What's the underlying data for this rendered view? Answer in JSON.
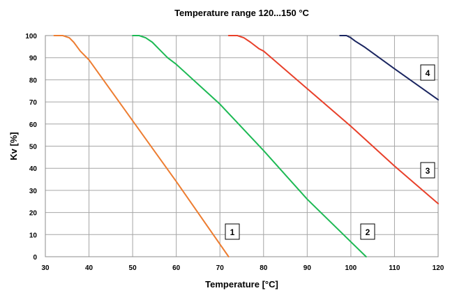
{
  "chart_data": {
    "type": "line",
    "title": "Temperature range 120...150 °C",
    "xlabel": "Temperature [°C]",
    "ylabel": "Kv [%]",
    "xlim": [
      30,
      120
    ],
    "ylim": [
      0,
      100
    ],
    "xticks": [
      30,
      40,
      50,
      60,
      70,
      80,
      90,
      100,
      110,
      120
    ],
    "yticks": [
      0,
      10,
      20,
      30,
      40,
      50,
      60,
      70,
      80,
      90,
      100
    ],
    "grid": true,
    "series": [
      {
        "name": "1",
        "color": "#ed7d31",
        "points": [
          [
            32,
            100
          ],
          [
            34,
            100
          ],
          [
            35.5,
            99
          ],
          [
            36.5,
            97
          ],
          [
            38,
            93
          ],
          [
            40,
            89
          ],
          [
            50,
            61.5
          ],
          [
            60,
            34
          ],
          [
            72,
            0
          ]
        ]
      },
      {
        "name": "2",
        "color": "#1db954",
        "points": [
          [
            50,
            100
          ],
          [
            51.5,
            100
          ],
          [
            53,
            99
          ],
          [
            54.5,
            97
          ],
          [
            56,
            94
          ],
          [
            58,
            90
          ],
          [
            60,
            87
          ],
          [
            70,
            69
          ],
          [
            80,
            48
          ],
          [
            90,
            26
          ],
          [
            103.5,
            0
          ]
        ]
      },
      {
        "name": "3",
        "color": "#e8402a",
        "points": [
          [
            72,
            100
          ],
          [
            74,
            100
          ],
          [
            75.5,
            99
          ],
          [
            77,
            97
          ],
          [
            79,
            94
          ],
          [
            80,
            93
          ],
          [
            90,
            76
          ],
          [
            100,
            59
          ],
          [
            110,
            41
          ],
          [
            120,
            24
          ]
        ]
      },
      {
        "name": "4",
        "color": "#1a2560",
        "points": [
          [
            97.5,
            100
          ],
          [
            99,
            100
          ],
          [
            100,
            99
          ],
          [
            101,
            97.5
          ],
          [
            103,
            95
          ],
          [
            110,
            85
          ],
          [
            120,
            71
          ]
        ]
      }
    ]
  }
}
